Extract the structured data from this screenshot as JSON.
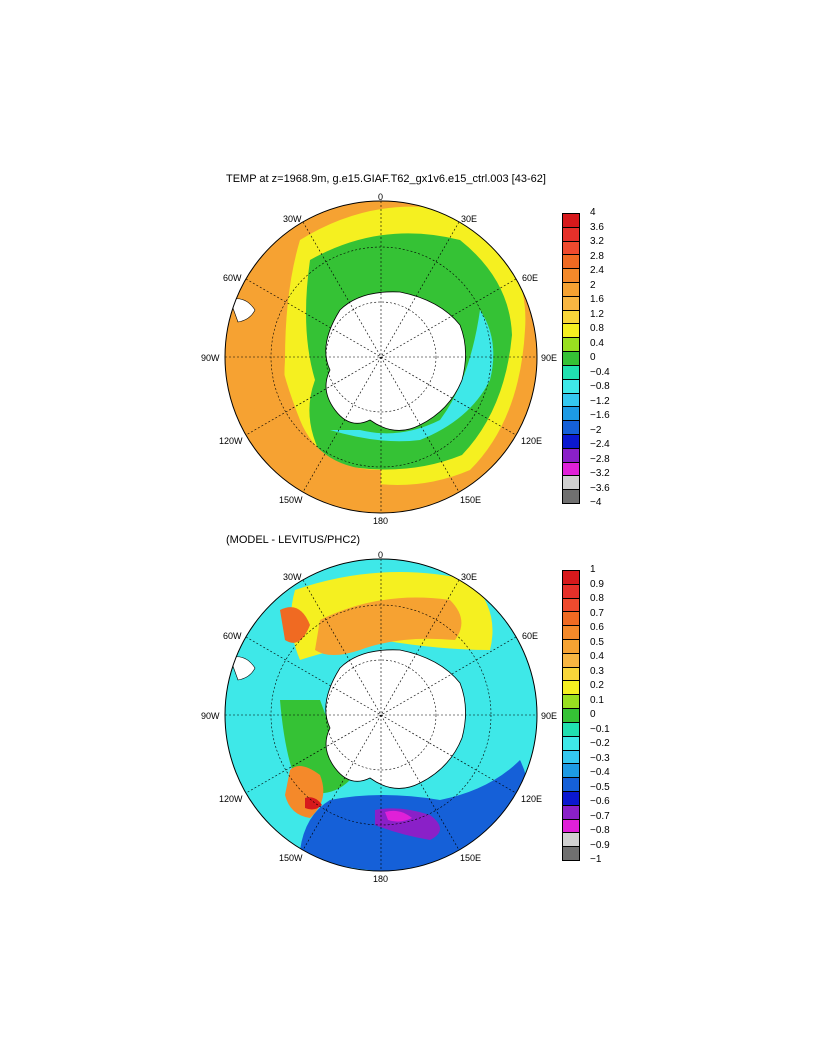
{
  "panels": [
    {
      "title": "TEMP at z=1968.9m, g.e15.GIAF.T62_gx1v6.e15_ctrl.003 [43-62]",
      "lon_labels": {
        "n": "0",
        "ne": "30E",
        "e1": "60E",
        "e": "90E",
        "se1": "120E",
        "se": "150E",
        "s": "180",
        "sw": "150W",
        "sw1": "120W",
        "w": "90W",
        "nw1": "60W",
        "nw": "30W"
      },
      "colorbar": {
        "labels": [
          "4",
          "3.6",
          "3.2",
          "2.8",
          "2.4",
          "2",
          "1.6",
          "1.2",
          "0.8",
          "0.4",
          "0",
          "−0.4",
          "−0.8",
          "−1.2",
          "−1.6",
          "−2",
          "−2.4",
          "−2.8",
          "−3.2",
          "−3.6",
          "−4"
        ],
        "colors": [
          "#d7191c",
          "#e6302a",
          "#ef4a2e",
          "#f06a22",
          "#f4892a",
          "#f6a232",
          "#f8b642",
          "#f8d63a",
          "#f5f020",
          "#99e020",
          "#35c235",
          "#20e0b0",
          "#3ee8e8",
          "#34c8f0",
          "#1d9ae4",
          "#1560d8",
          "#0b18d0",
          "#8a20c8",
          "#e020d8",
          "#d0d0d0",
          "#707070"
        ]
      }
    },
    {
      "title": "(MODEL - LEVITUS/PHC2)",
      "lon_labels": {
        "n": "0",
        "ne": "30E",
        "e1": "60E",
        "e": "90E",
        "se1": "120E",
        "se": "150E",
        "s": "180",
        "sw": "150W",
        "sw1": "120W",
        "w": "90W",
        "nw1": "60W",
        "nw": "30W"
      },
      "colorbar": {
        "labels": [
          "1",
          "0.9",
          "0.8",
          "0.7",
          "0.6",
          "0.5",
          "0.4",
          "0.3",
          "0.2",
          "0.1",
          "0",
          "−0.1",
          "−0.2",
          "−0.3",
          "−0.4",
          "−0.5",
          "−0.6",
          "−0.7",
          "−0.8",
          "−0.9",
          "−1"
        ],
        "colors": [
          "#d7191c",
          "#e6302a",
          "#ef4a2e",
          "#f06a22",
          "#f4892a",
          "#f6a232",
          "#f8b642",
          "#f8d63a",
          "#f5f020",
          "#99e020",
          "#35c235",
          "#20e0b0",
          "#3ee8e8",
          "#34c8f0",
          "#1d9ae4",
          "#1560d8",
          "#0b18d0",
          "#8a20c8",
          "#e020d8",
          "#d0d0d0",
          "#707070"
        ]
      }
    }
  ]
}
